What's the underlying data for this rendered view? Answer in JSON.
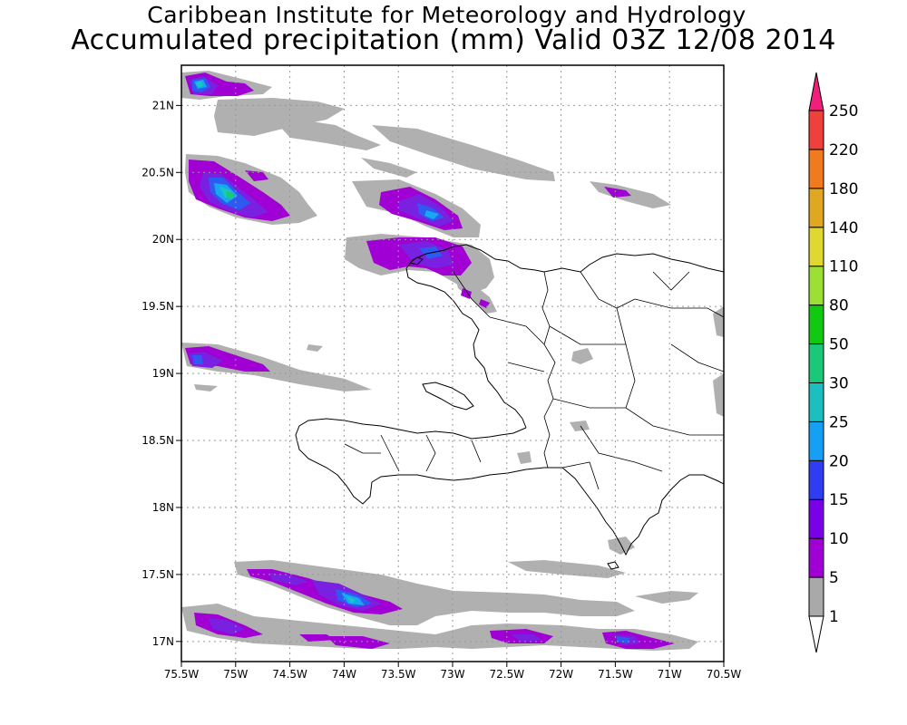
{
  "header": {
    "institute": "Caribbean Institute for Meteorology and Hydrology",
    "product": "Accumulated precipitation (mm) Valid 03Z 12/08 2014"
  },
  "map": {
    "lon_range": [
      -75.5,
      -70.5
    ],
    "lat_range": [
      16.85,
      21.3
    ],
    "grid": true,
    "lon_ticks": [
      "75.5W",
      "75W",
      "74.5W",
      "74W",
      "73.5W",
      "73W",
      "72.5W",
      "72W",
      "71.5W",
      "71W",
      "70.5W"
    ],
    "lat_ticks": [
      "17N",
      "17.5N",
      "18N",
      "18.5N",
      "19N",
      "19.5N",
      "20N",
      "20.5N",
      "21N"
    ]
  },
  "colorbar": {
    "levels": [
      "1",
      "5",
      "10",
      "15",
      "20",
      "25",
      "30",
      "50",
      "80",
      "110",
      "140",
      "180",
      "220",
      "250"
    ],
    "colors": [
      "#ffffff",
      "#a9a9a9",
      "#a000d4",
      "#7a00e8",
      "#2e3cf2",
      "#15a0f5",
      "#1bbfbf",
      "#1ac87a",
      "#12c912",
      "#9de035",
      "#e0d830",
      "#e0a820",
      "#f07a1e",
      "#f0403c",
      "#f0207a"
    ]
  },
  "precip_colors": {
    "gray": "#b0b0b0",
    "purple": "#a000d4",
    "violet": "#7a20e0",
    "blue": "#2e5af2",
    "lightblue": "#18a8f0",
    "cyan": "#16c8c0",
    "green": "#1ac87a"
  }
}
